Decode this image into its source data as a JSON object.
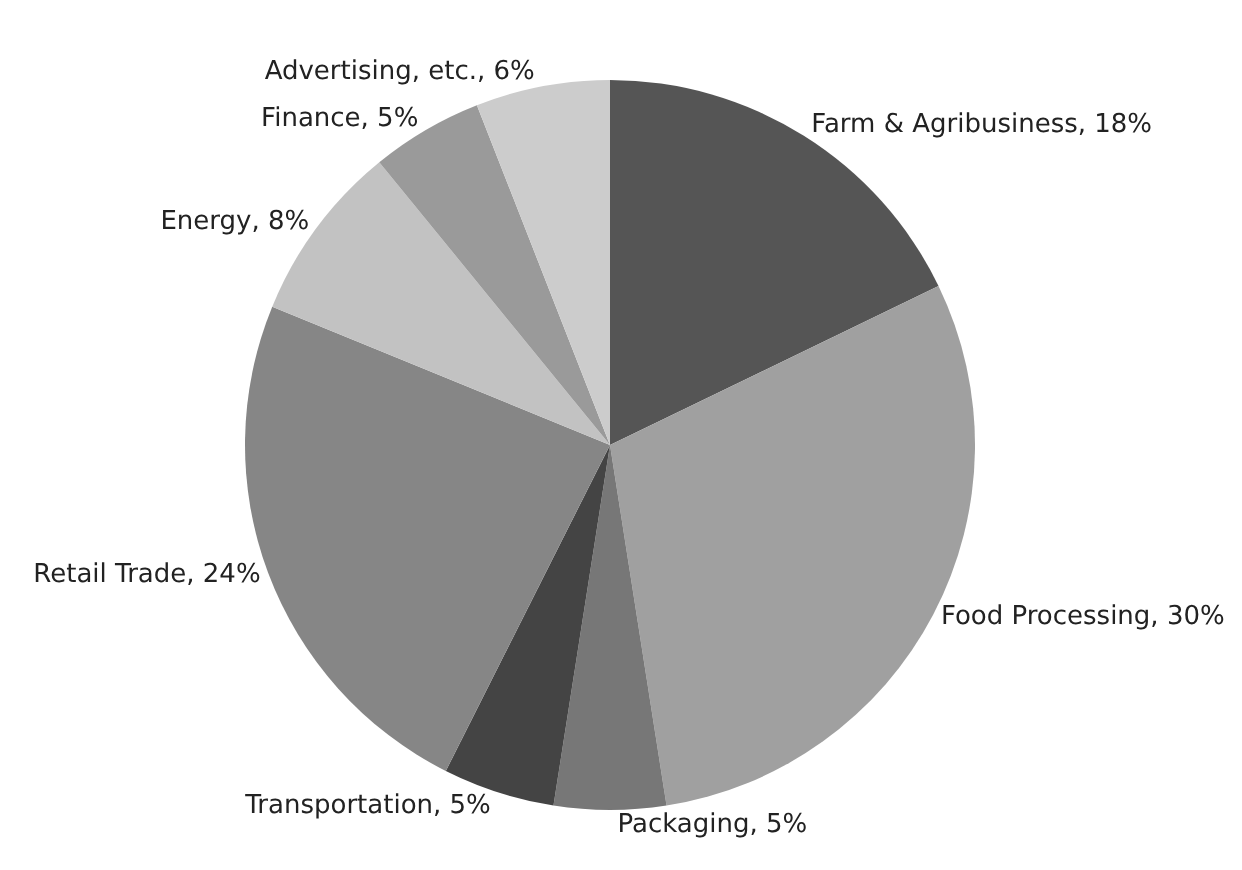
{
  "chart_data": {
    "type": "pie",
    "categories": [
      "Farm & Agribusiness",
      "Food Processing",
      "Packaging",
      "Transportation",
      "Retail Trade",
      "Energy",
      "Finance",
      "Advertising, etc."
    ],
    "values": [
      18,
      30,
      5,
      5,
      24,
      8,
      5,
      6
    ],
    "value_labels": [
      "18%",
      "30%",
      "5%",
      "5%",
      "24%",
      "8%",
      "5%",
      "6%"
    ],
    "colors": [
      "#555555",
      "#a0a0a0",
      "#777777",
      "#444444",
      "#868686",
      "#c2c2c2",
      "#9a9a9a",
      "#cccccc"
    ],
    "legend": false
  }
}
